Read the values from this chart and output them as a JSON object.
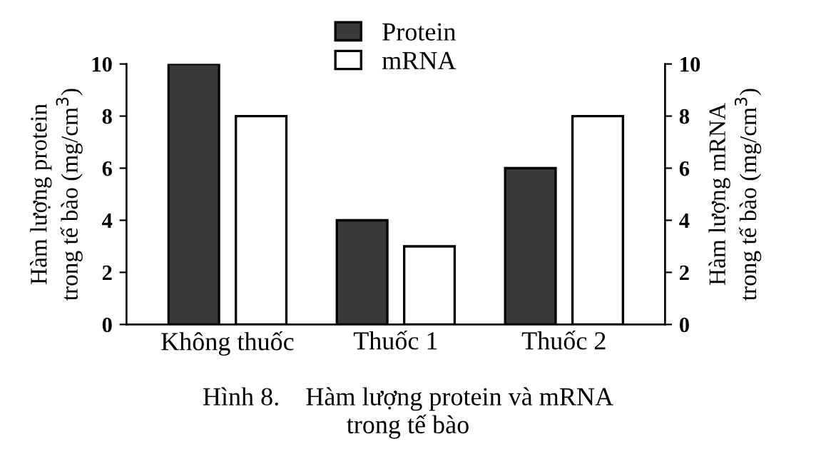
{
  "chart_data": {
    "type": "bar",
    "categories": [
      "Không thuốc",
      "Thuốc 1",
      "Thuốc 2"
    ],
    "series": [
      {
        "name": "Protein",
        "color": "#3a3a3a",
        "values": [
          10,
          4,
          6
        ]
      },
      {
        "name": "mRNA",
        "color": "#ffffff",
        "values": [
          8,
          3,
          8
        ]
      }
    ],
    "ylabel": "Hàm lượng protein\ntrong tế bào (mg/cm$^{3}$)",
    "y2label": "Hàm lượng mRNA\ntrong tế bào (mg/cm$^{3}$)",
    "ylim": [
      0,
      10
    ],
    "yticks": [
      0,
      2,
      4,
      6,
      8,
      10
    ],
    "y2lim": [
      0,
      10
    ],
    "y2ticks": [
      0,
      2,
      4,
      6,
      8,
      10
    ],
    "legend": "top",
    "grid": false,
    "annotations": [
      "Hình 8.    Hàm lượng protein và mRNA\ntrong tế bào"
    ]
  }
}
